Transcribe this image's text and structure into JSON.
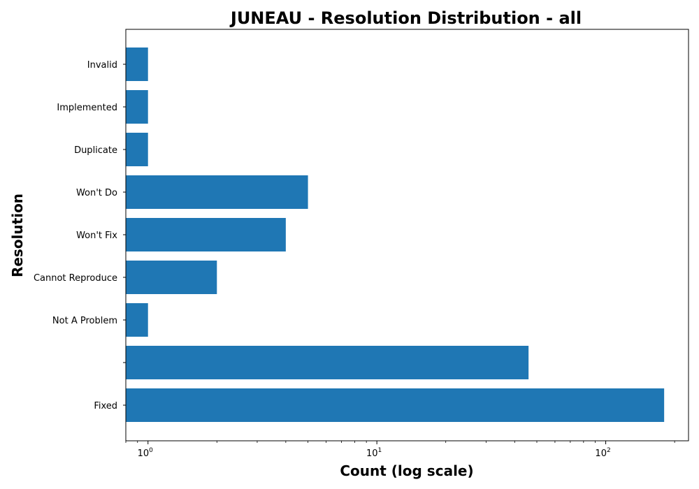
{
  "chart_data": {
    "type": "bar",
    "orientation": "horizontal",
    "title": "JUNEAU - Resolution Distribution - all",
    "xlabel": "Count (log scale)",
    "ylabel": "Resolution",
    "x_scale": "log",
    "xlim": [
      0.8,
      230
    ],
    "x_ticks": [
      {
        "value": 1,
        "base": "10",
        "exp": "0"
      },
      {
        "value": 10,
        "base": "10",
        "exp": "1"
      },
      {
        "value": 100,
        "base": "10",
        "exp": "2"
      }
    ],
    "categories": [
      "Fixed",
      "",
      "Not A Problem",
      "Cannot Reproduce",
      "Won't Fix",
      "Won't Do",
      "Duplicate",
      "Implemented",
      "Invalid"
    ],
    "values": [
      180,
      46,
      1,
      2,
      4,
      5,
      1,
      1,
      1
    ],
    "bar_color": "#1f77b4",
    "grid": false,
    "legend": false
  }
}
